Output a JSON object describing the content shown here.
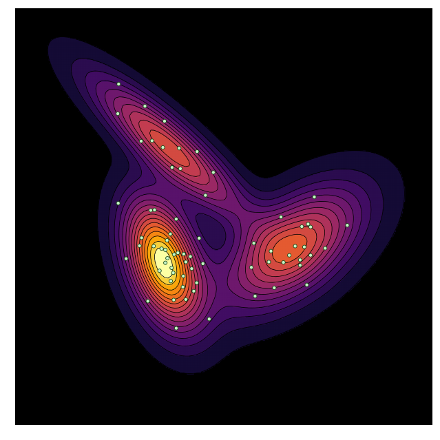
{
  "chart_data": {
    "type": "contour",
    "title": "",
    "xlabel": "",
    "ylabel": "",
    "grid": false,
    "axes_visible": false,
    "colormap": "inferno",
    "background_color": "#000000",
    "contour_line_color": "#000000",
    "point_fill_color": "#c8f5c8",
    "point_edge_color": "#1b4d1b",
    "xlim": [
      0,
      100
    ],
    "ylim": [
      0,
      100
    ],
    "levels": 16,
    "components": [
      {
        "name": "upper",
        "center": [
          37.0,
          66.5
        ],
        "sigma_major": 16.0,
        "sigma_minor": 4.0,
        "angle_deg": -42,
        "weight": 0.62
      },
      {
        "name": "lower-left",
        "center": [
          35.5,
          39.0
        ],
        "sigma_major": 10.5,
        "sigma_minor": 5.4,
        "angle_deg": -72,
        "weight": 1.0
      },
      {
        "name": "right",
        "center": [
          66.5,
          42.5
        ],
        "sigma_major": 13.0,
        "sigma_minor": 6.8,
        "angle_deg": 38,
        "weight": 0.66
      }
    ],
    "points": [
      [
        24.8,
        81.8
      ],
      [
        24.6,
        74.7
      ],
      [
        31.1,
        76.5
      ],
      [
        35.8,
        72.9
      ],
      [
        30.2,
        68.1
      ],
      [
        32.8,
        68.2
      ],
      [
        35.4,
        66.6
      ],
      [
        39.3,
        66.4
      ],
      [
        43.6,
        65.6
      ],
      [
        37.6,
        61.8
      ],
      [
        39.6,
        61.5
      ],
      [
        47.5,
        60.6
      ],
      [
        45.6,
        55.1
      ],
      [
        24.7,
        53.2
      ],
      [
        32.5,
        51.5
      ],
      [
        33.4,
        51.6
      ],
      [
        38.6,
        49.4
      ],
      [
        44.1,
        44.8
      ],
      [
        30.3,
        44.9
      ],
      [
        29.8,
        43.0
      ],
      [
        33.2,
        42.9
      ],
      [
        35.1,
        42.3
      ],
      [
        36.0,
        42.0
      ],
      [
        36.4,
        44.3
      ],
      [
        37.2,
        45.8
      ],
      [
        38.1,
        40.9
      ],
      [
        39.0,
        41.3
      ],
      [
        40.4,
        41.0
      ],
      [
        36.5,
        40.0
      ],
      [
        36.0,
        38.9
      ],
      [
        37.5,
        37.7
      ],
      [
        40.9,
        39.1
      ],
      [
        42.0,
        40.4
      ],
      [
        42.3,
        37.5
      ],
      [
        26.6,
        39.9
      ],
      [
        34.6,
        37.0
      ],
      [
        37.3,
        34.5
      ],
      [
        37.9,
        36.5
      ],
      [
        40.3,
        35.7
      ],
      [
        45.0,
        38.7
      ],
      [
        43.5,
        34.1
      ],
      [
        40.2,
        33.1
      ],
      [
        42.8,
        32.1
      ],
      [
        40.9,
        30.1
      ],
      [
        38.0,
        30.0
      ],
      [
        31.8,
        29.7
      ],
      [
        46.5,
        25.4
      ],
      [
        38.6,
        23.2
      ],
      [
        71.7,
        54.7
      ],
      [
        79.6,
        47.9
      ],
      [
        63.7,
        49.9
      ],
      [
        57.2,
        43.6
      ],
      [
        68.7,
        47.6
      ],
      [
        70.2,
        48.2
      ],
      [
        70.8,
        47.5
      ],
      [
        67.1,
        42.9
      ],
      [
        69.3,
        42.7
      ],
      [
        61.3,
        41.7
      ],
      [
        65.7,
        40.7
      ],
      [
        70.8,
        40.7
      ],
      [
        74.3,
        42.4
      ],
      [
        68.3,
        39.6
      ],
      [
        60.8,
        39.1
      ],
      [
        64.3,
        39.0
      ],
      [
        68.3,
        38.3
      ],
      [
        56.6,
        37.8
      ],
      [
        62.1,
        32.9
      ],
      [
        69.9,
        33.6
      ],
      [
        57.5,
        30.9
      ]
    ]
  }
}
